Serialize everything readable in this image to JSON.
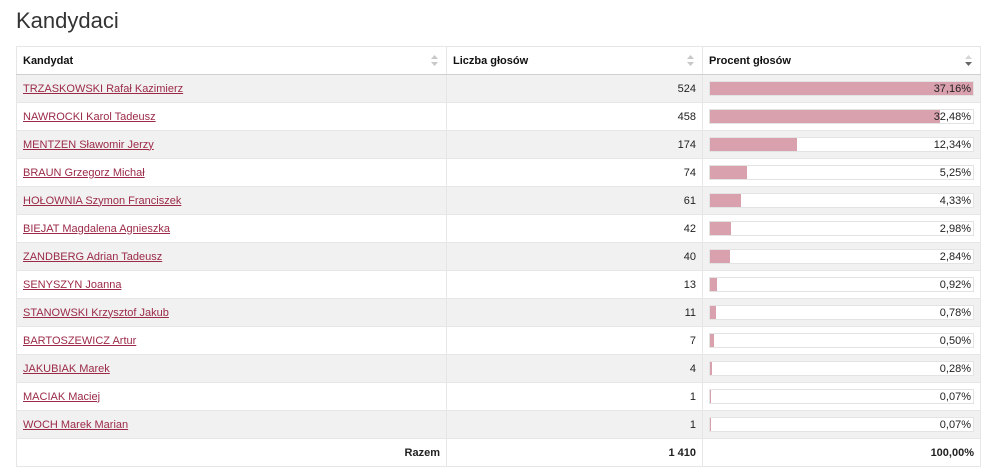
{
  "page": {
    "title": "Kandydaci"
  },
  "table": {
    "headers": {
      "candidate": "Kandydat",
      "votes": "Liczba głosów",
      "percent": "Procent głosów"
    },
    "rows": [
      {
        "name": "TRZASKOWSKI Rafał Kazimierz",
        "votes": "524",
        "percent": "37,16%",
        "share": 37.16
      },
      {
        "name": "NAWROCKI Karol Tadeusz",
        "votes": "458",
        "percent": "32,48%",
        "share": 32.48
      },
      {
        "name": "MENTZEN Sławomir Jerzy",
        "votes": "174",
        "percent": "12,34%",
        "share": 12.34
      },
      {
        "name": "BRAUN Grzegorz Michał",
        "votes": "74",
        "percent": "5,25%",
        "share": 5.25
      },
      {
        "name": "HOŁOWNIA Szymon Franciszek",
        "votes": "61",
        "percent": "4,33%",
        "share": 4.33
      },
      {
        "name": "BIEJAT Magdalena Agnieszka",
        "votes": "42",
        "percent": "2,98%",
        "share": 2.98
      },
      {
        "name": "ZANDBERG Adrian Tadeusz",
        "votes": "40",
        "percent": "2,84%",
        "share": 2.84
      },
      {
        "name": "SENYSZYN Joanna",
        "votes": "13",
        "percent": "0,92%",
        "share": 0.92
      },
      {
        "name": "STANOWSKI Krzysztof Jakub",
        "votes": "11",
        "percent": "0,78%",
        "share": 0.78
      },
      {
        "name": "BARTOSZEWICZ Artur",
        "votes": "7",
        "percent": "0,50%",
        "share": 0.5
      },
      {
        "name": "JAKUBIAK Marek",
        "votes": "4",
        "percent": "0,28%",
        "share": 0.28
      },
      {
        "name": "MACIAK Maciej",
        "votes": "1",
        "percent": "0,07%",
        "share": 0.07
      },
      {
        "name": "WOCH Marek Marian",
        "votes": "1",
        "percent": "0,07%",
        "share": 0.07
      }
    ],
    "footer": {
      "label": "Razem",
      "votes": "1 410",
      "percent": "100,00%"
    },
    "bar_scale_max_percent": 37.16
  },
  "colors": {
    "link": "#9b2a47",
    "bar": "#d9a0ae",
    "row_stripe": "#f1f1f1"
  }
}
